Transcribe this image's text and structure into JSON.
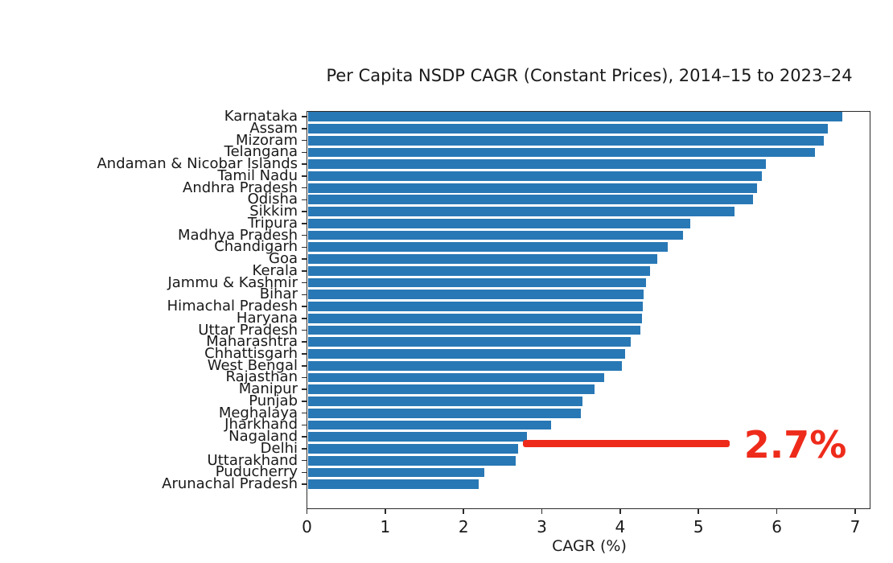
{
  "chart_data": {
    "type": "bar",
    "orientation": "horizontal",
    "title": "Per Capita NSDP CAGR (Constant Prices), 2014–15 to 2023–24",
    "xlabel": "CAGR (%)",
    "xlim": [
      0,
      7.2
    ],
    "xticks": [
      "0",
      "1",
      "2",
      "3",
      "4",
      "5",
      "6",
      "7"
    ],
    "grid": false,
    "legend": "none",
    "bar_color": "#2878b5",
    "categories": [
      "Karnataka",
      "Assam",
      "Mizoram",
      "Telangana",
      "Andaman & Nicobar Islands",
      "Tamil Nadu",
      "Andhra Pradesh",
      "Odisha",
      "Sikkim",
      "Tripura",
      "Madhya Pradesh",
      "Chandigarh",
      "Goa",
      "Kerala",
      "Jammu & Kashmir",
      "Bihar",
      "Himachal Pradesh",
      "Haryana",
      "Uttar Pradesh",
      "Maharashtra",
      "Chhattisgarh",
      "West Bengal",
      "Rajasthan",
      "Manipur",
      "Punjab",
      "Meghalaya",
      "Jharkhand",
      "Nagaland",
      "Delhi",
      "Uttarakhand",
      "Puducherry",
      "Arunachal Pradesh"
    ],
    "values": [
      6.84,
      6.65,
      6.6,
      6.49,
      5.86,
      5.81,
      5.75,
      5.7,
      5.46,
      4.89,
      4.8,
      4.61,
      4.47,
      4.38,
      4.33,
      4.3,
      4.29,
      4.28,
      4.26,
      4.13,
      4.06,
      4.02,
      3.8,
      3.67,
      3.52,
      3.5,
      3.12,
      2.81,
      2.7,
      2.67,
      2.26,
      2.19
    ],
    "annotation": {
      "label": "2.7%",
      "target_category": "Delhi",
      "color": "#ee2b1b",
      "line_x_start": 2.76,
      "line_x_end": 5.4,
      "label_x": 5.58
    }
  }
}
